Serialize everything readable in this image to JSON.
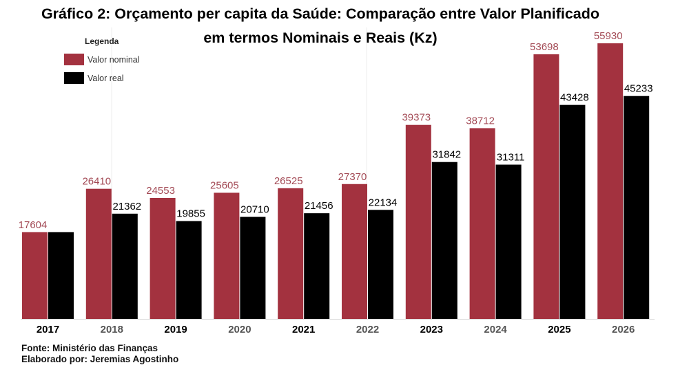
{
  "chart_data": {
    "type": "bar",
    "title_line1": "Gráfico 2: Orçamento per capita da Saúde: Comparação entre Valor Planificado",
    "title_line2": "em termos  Nominais e Reais (Kz)",
    "legend_title": "Legenda",
    "legend_position": "top-left",
    "categories": [
      "2017",
      "2018",
      "2019",
      "2020",
      "2021",
      "2022",
      "2023",
      "2024",
      "2025",
      "2026"
    ],
    "series": [
      {
        "name": "Valor nominal",
        "color": "#a3323f",
        "label_color": "#a34a55",
        "values": [
          17604,
          26410,
          24553,
          25605,
          26525,
          27370,
          39373,
          38712,
          53698,
          55930
        ],
        "labels": [
          "17604",
          "26410",
          "24553",
          "25605",
          "26525",
          "27370",
          "39373",
          "38712",
          "53698",
          "55930"
        ]
      },
      {
        "name": "Valor real",
        "color": "#000000",
        "label_color": "#000000",
        "values": [
          17604,
          21362,
          19855,
          20710,
          21456,
          22134,
          31842,
          31311,
          43428,
          45233
        ],
        "labels": [
          null,
          "21362",
          "19855",
          "20710",
          "21456",
          "22134",
          "31842",
          "31311",
          "43428",
          "45233"
        ]
      }
    ],
    "ylim": [
      0,
      56000
    ],
    "xlabel": "",
    "ylabel": "",
    "grid": false
  },
  "footer": {
    "source": "Fonte: Ministério das Finanças",
    "author": "Elaborado por: Jeremias Agostinho"
  }
}
